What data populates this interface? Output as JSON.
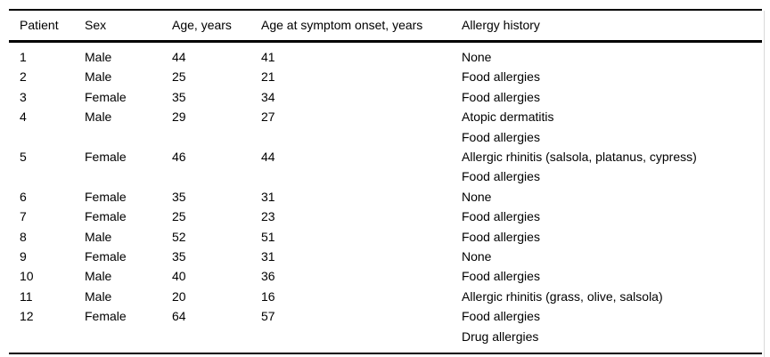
{
  "table": {
    "columns": [
      "Patient",
      "Sex",
      "Age, years",
      "Age at symptom onset, years",
      "Allergy history"
    ],
    "rows": [
      {
        "patient": "1",
        "sex": "Male",
        "age": "44",
        "age_at_onset": "41",
        "allergy_history": [
          "None"
        ]
      },
      {
        "patient": "2",
        "sex": "Male",
        "age": "25",
        "age_at_onset": "21",
        "allergy_history": [
          "Food allergies"
        ]
      },
      {
        "patient": "3",
        "sex": "Female",
        "age": "35",
        "age_at_onset": "34",
        "allergy_history": [
          "Food allergies"
        ]
      },
      {
        "patient": "4",
        "sex": "Male",
        "age": "29",
        "age_at_onset": "27",
        "allergy_history": [
          "Atopic dermatitis",
          "Food allergies"
        ]
      },
      {
        "patient": "5",
        "sex": "Female",
        "age": "46",
        "age_at_onset": "44",
        "allergy_history": [
          "Allergic rhinitis (salsola, platanus, cypress)",
          "Food allergies"
        ]
      },
      {
        "patient": "6",
        "sex": "Female",
        "age": "35",
        "age_at_onset": "31",
        "allergy_history": [
          "None"
        ]
      },
      {
        "patient": "7",
        "sex": "Female",
        "age": "25",
        "age_at_onset": "23",
        "allergy_history": [
          "Food allergies"
        ]
      },
      {
        "patient": "8",
        "sex": "Male",
        "age": "52",
        "age_at_onset": "51",
        "allergy_history": [
          "Food allergies"
        ]
      },
      {
        "patient": "9",
        "sex": "Female",
        "age": "35",
        "age_at_onset": "31",
        "allergy_history": [
          "None"
        ]
      },
      {
        "patient": "10",
        "sex": "Male",
        "age": "40",
        "age_at_onset": "36",
        "allergy_history": [
          "Food allergies"
        ]
      },
      {
        "patient": "11",
        "sex": "Male",
        "age": "20",
        "age_at_onset": "16",
        "allergy_history": [
          "Allergic rhinitis (grass, olive, salsola)"
        ]
      },
      {
        "patient": "12",
        "sex": "Female",
        "age": "64",
        "age_at_onset": "57",
        "allergy_history": [
          "Food allergies",
          "Drug allergies"
        ]
      }
    ],
    "colors": {
      "text": "#000000",
      "background": "#ffffff",
      "rule": "#000000"
    }
  }
}
